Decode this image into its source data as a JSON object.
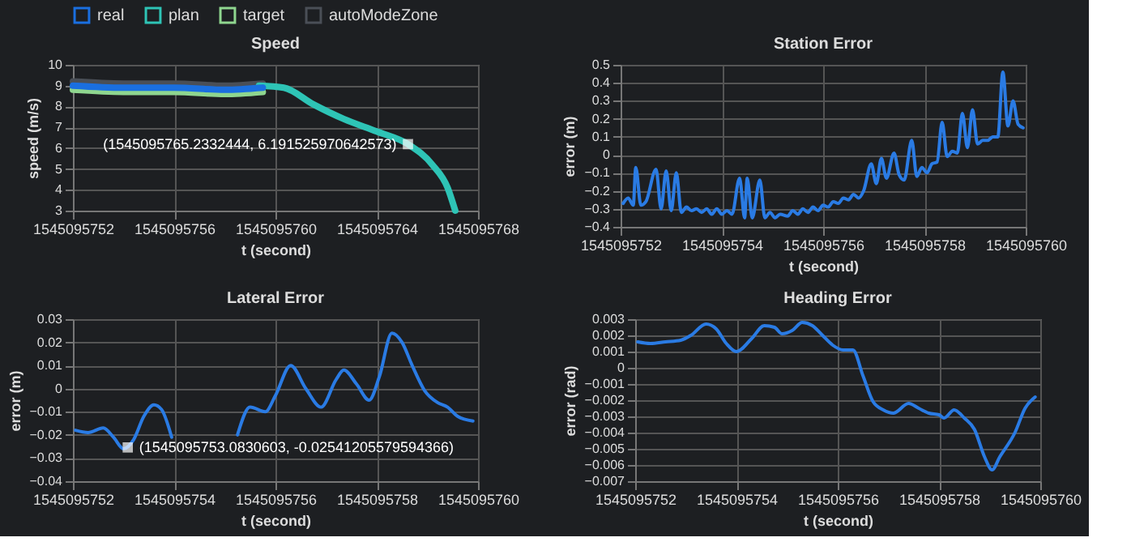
{
  "chart_data": [
    {
      "type": "line",
      "title": "Speed",
      "xlabel": "t (second)",
      "ylabel": "speed (m/s)",
      "xlim": [
        1545095752,
        1545095768
      ],
      "xticks": [
        1545095752,
        1545095756,
        1545095760,
        1545095764,
        1545095768
      ],
      "ylim": [
        3,
        10
      ],
      "yticks": [
        3,
        4,
        5,
        6,
        7,
        8,
        9,
        10
      ],
      "grid": true,
      "legend": "top",
      "series": [
        {
          "name": "real",
          "color": "#1a6fe0",
          "x": [
            1545095752,
            1545095754,
            1545095756,
            1545095758,
            1545095759.5
          ],
          "values": [
            9.0,
            8.9,
            8.9,
            8.8,
            8.9
          ]
        },
        {
          "name": "plan",
          "color": "#2ec4b6",
          "x": [
            1545095759.35,
            1545095760.33,
            1545095761.5,
            1545095762.7,
            1545095764,
            1545095765.2332444,
            1545095766.2,
            1545095766.8,
            1545095767.1
          ],
          "values": [
            9.0,
            8.9,
            8.1,
            7.4,
            6.8,
            6.19,
            5.2,
            4.1,
            3.0
          ]
        },
        {
          "name": "target",
          "color": "#8fd68f",
          "x": [
            1545095752,
            1545095754,
            1545095756,
            1545095758,
            1545095759.5
          ],
          "values": [
            8.8,
            8.7,
            8.7,
            8.6,
            8.7
          ]
        },
        {
          "name": "autoModeZone",
          "color": "#4a4f57",
          "x": [
            1545095752,
            1545095754,
            1545095756,
            1545095758,
            1545095759.5
          ],
          "values": [
            9.2,
            9.1,
            9.1,
            9.0,
            9.1
          ]
        }
      ],
      "annotations": [
        {
          "text": "(1545095765.2332444, 6.191525970642573)",
          "x": 1545095765.2332444,
          "y": 6.191525970642573
        }
      ]
    },
    {
      "type": "line",
      "title": "Station Error",
      "xlabel": "t (second)",
      "ylabel": "error (m)",
      "xlim": [
        1545095752,
        1545095760
      ],
      "xticks": [
        1545095752,
        1545095754,
        1545095756,
        1545095758,
        1545095760
      ],
      "ylim": [
        -0.4,
        0.5
      ],
      "yticks": [
        -0.4,
        -0.3,
        -0.2,
        -0.1,
        0,
        0.1,
        0.2,
        0.3,
        0.4,
        0.5
      ],
      "grid": true,
      "series": [
        {
          "color": "#2a7be4",
          "x": [
            1545095752.05,
            1545095752.15,
            1545095752.25,
            1545095752.3,
            1545095752.4,
            1545095752.5,
            1545095752.7,
            1545095752.8,
            1545095752.9,
            1545095753.0,
            1545095753.1,
            1545095753.2,
            1545095753.3,
            1545095753.4,
            1545095753.5,
            1545095753.6,
            1545095753.7,
            1545095753.8,
            1545095753.9,
            1545095754.0,
            1545095754.1,
            1545095754.2,
            1545095754.35,
            1545095754.45,
            1545095754.5,
            1545095754.6,
            1545095754.75,
            1545095754.85,
            1545095754.95,
            1545095755.05,
            1545095755.15,
            1545095755.3,
            1545095755.4,
            1545095755.5,
            1545095755.6,
            1545095755.7,
            1545095755.8,
            1545095755.9,
            1545095756.0,
            1545095756.1,
            1545095756.2,
            1545095756.3,
            1545095756.4,
            1545095756.5,
            1545095756.6,
            1545095756.7,
            1545095756.8,
            1545095756.95,
            1545095757.05,
            1545095757.15,
            1545095757.25,
            1545095757.4,
            1545095757.5,
            1545095757.6,
            1545095757.75,
            1545095757.85,
            1545095757.95,
            1545095758.05,
            1545095758.15,
            1545095758.25,
            1545095758.35,
            1545095758.45,
            1545095758.55,
            1545095758.65,
            1545095758.75,
            1545095758.85,
            1545095758.95,
            1545095759.05,
            1545095759.15,
            1545095759.25,
            1545095759.35,
            1545095759.45,
            1545095759.55,
            1545095759.65,
            1545095759.75,
            1545095759.85,
            1545095759.95
          ],
          "values": [
            -0.27,
            -0.24,
            -0.28,
            -0.07,
            -0.28,
            -0.26,
            -0.08,
            -0.3,
            -0.09,
            -0.31,
            -0.1,
            -0.32,
            -0.29,
            -0.31,
            -0.3,
            -0.32,
            -0.3,
            -0.33,
            -0.3,
            -0.33,
            -0.31,
            -0.33,
            -0.13,
            -0.35,
            -0.13,
            -0.35,
            -0.14,
            -0.35,
            -0.32,
            -0.35,
            -0.33,
            -0.34,
            -0.31,
            -0.33,
            -0.3,
            -0.32,
            -0.29,
            -0.31,
            -0.28,
            -0.29,
            -0.26,
            -0.27,
            -0.24,
            -0.25,
            -0.22,
            -0.24,
            -0.2,
            -0.05,
            -0.16,
            -0.02,
            -0.13,
            0.01,
            -0.11,
            -0.14,
            0.08,
            -0.12,
            -0.07,
            -0.1,
            -0.05,
            -0.04,
            0.18,
            -0.01,
            0.02,
            0.01,
            0.23,
            0.04,
            0.25,
            0.06,
            0.08,
            0.08,
            0.1,
            0.1,
            0.46,
            0.16,
            0.3,
            0.17,
            0.15
          ]
        }
      ]
    },
    {
      "type": "line",
      "title": "Lateral Error",
      "xlabel": "t (second)",
      "ylabel": "error (m)",
      "xlim": [
        1545095752,
        1545095760
      ],
      "xticks": [
        1545095752,
        1545095754,
        1545095756,
        1545095758,
        1545095760
      ],
      "ylim": [
        -0.04,
        0.03
      ],
      "yticks": [
        -0.04,
        -0.03,
        -0.02,
        -0.01,
        0,
        0.01,
        0.02,
        0.03
      ],
      "grid": true,
      "series": [
        {
          "color": "#2a7be4",
          "x": [
            1545095752.05,
            1545095752.3,
            1545095752.6,
            1545095752.8,
            1545095753.0,
            1545095753.2,
            1545095753.4,
            1545095753.6,
            1545095753.75,
            1545095753.95,
            1545095754.6,
            1545095755.25,
            1545095755.5,
            1545095755.8,
            1545095756.0,
            1545095756.3,
            1545095756.6,
            1545095756.9,
            1545095757.2,
            1545095757.35,
            1545095757.6,
            1545095757.85,
            1545095758.05,
            1545095758.3,
            1545095758.5,
            1545095758.7,
            1545095758.95,
            1545095759.2,
            1545095759.4,
            1545095759.6,
            1545095759.9
          ],
          "values": [
            -0.018,
            -0.019,
            -0.017,
            -0.021,
            -0.026,
            -0.022,
            -0.012,
            -0.007,
            -0.009,
            -0.021,
            null,
            -0.02,
            -0.008,
            -0.01,
            -0.003,
            0.01,
            0.0,
            -0.008,
            0.004,
            0.008,
            0.002,
            -0.005,
            0.005,
            0.024,
            0.02,
            0.01,
            -0.001,
            -0.006,
            -0.008,
            -0.012,
            -0.014
          ]
        }
      ],
      "annotations": [
        {
          "text": "(1545095753.0830603, -0.02541205579594366)",
          "x": 1545095753.0830603,
          "y": -0.02541205579594366
        }
      ]
    },
    {
      "type": "line",
      "title": "Heading Error",
      "xlabel": "t (second)",
      "ylabel": "error (rad)",
      "xlim": [
        1545095752,
        1545095760
      ],
      "xticks": [
        1545095752,
        1545095754,
        1545095756,
        1545095758,
        1545095760
      ],
      "ylim": [
        -0.007,
        0.003
      ],
      "yticks": [
        -0.007,
        -0.006,
        -0.005,
        -0.004,
        -0.003,
        -0.002,
        -0.001,
        0,
        0.001,
        0.002,
        0.003
      ],
      "grid": true,
      "series": [
        {
          "color": "#2a7be4",
          "x": [
            1545095752.05,
            1545095752.3,
            1545095752.6,
            1545095752.9,
            1545095753.1,
            1545095753.4,
            1545095753.6,
            1545095753.8,
            1545095754.0,
            1545095754.3,
            1545095754.55,
            1545095754.75,
            1545095754.9,
            1545095755.1,
            1545095755.3,
            1545095755.5,
            1545095755.7,
            1545095755.9,
            1545095756.1,
            1545095756.3,
            1545095756.5,
            1545095756.7,
            1545095756.9,
            1545095757.1,
            1545095757.4,
            1545095757.6,
            1545095757.8,
            1545095758.0,
            1545095758.1,
            1545095758.3,
            1545095758.5,
            1545095758.7,
            1545095758.9,
            1545095759.05,
            1545095759.2,
            1545095759.5,
            1545095759.7,
            1545095759.9
          ],
          "values": [
            0.0016,
            0.0015,
            0.0016,
            0.0017,
            0.002,
            0.0027,
            0.0024,
            0.0015,
            0.001,
            0.0018,
            0.0026,
            0.0025,
            0.0021,
            0.0023,
            0.0028,
            0.0026,
            0.002,
            0.0014,
            0.0011,
            0.0011,
            -0.0005,
            -0.0021,
            -0.0026,
            -0.0028,
            -0.0022,
            -0.0025,
            -0.0028,
            -0.0029,
            -0.0031,
            -0.0026,
            -0.0031,
            -0.0038,
            -0.0055,
            -0.0063,
            -0.0055,
            -0.004,
            -0.0025,
            -0.0018
          ]
        }
      ]
    }
  ]
}
